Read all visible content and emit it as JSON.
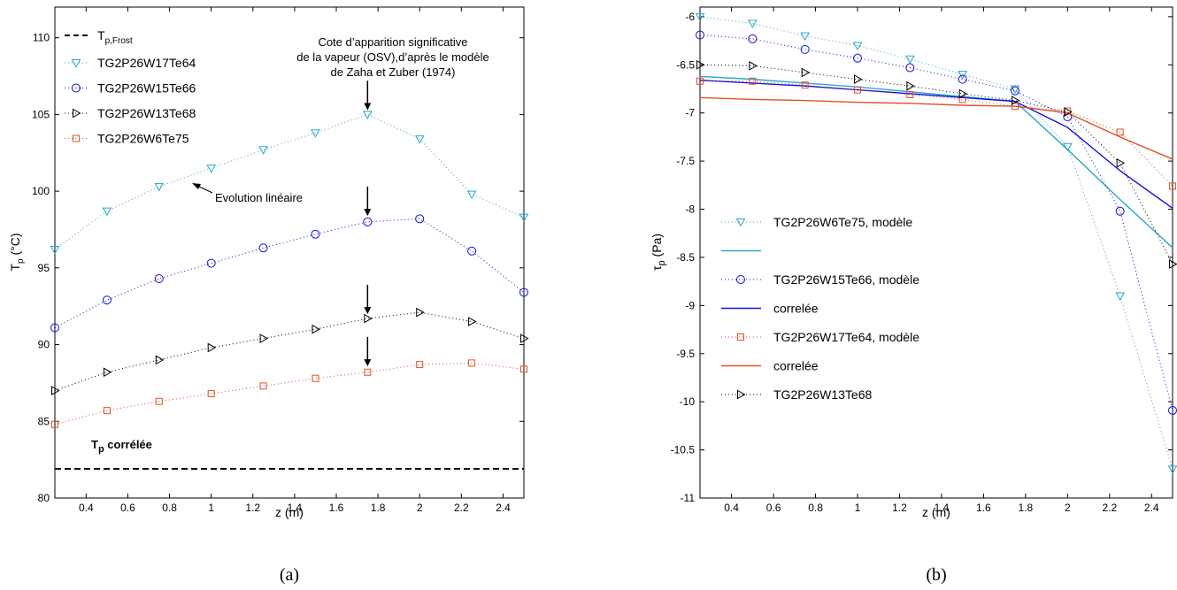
{
  "chart_data": [
    {
      "type": "line",
      "panel_label": "(a)",
      "xlabel": "z (m)",
      "ylabel": "T",
      "ylabel_sub": "p",
      "ylabel_unit": " (°C)",
      "xlim": [
        0.25,
        2.5
      ],
      "ylim": [
        80,
        112
      ],
      "xticks": [
        0.4,
        0.6,
        0.8,
        1,
        1.2,
        1.4,
        1.6,
        1.8,
        2,
        2.2,
        2.4
      ],
      "xticklabels": [
        "0.4",
        "0.6",
        "0.8",
        "1",
        "1.2",
        "1.4",
        "1.6",
        "1.8",
        "2",
        "2.2",
        "2.4"
      ],
      "yticks": [
        80,
        85,
        90,
        95,
        100,
        105,
        110
      ],
      "yticklabels": [
        "80",
        "85",
        "90",
        "95",
        "100",
        "105",
        "110"
      ],
      "grid": false,
      "legend_position": "top-left",
      "reference_line": {
        "y": 81.9,
        "label_main": "T",
        "label_sub": "p,Frost",
        "color": "#000000"
      },
      "x": [
        0.25,
        0.5,
        0.75,
        1.0,
        1.25,
        1.5,
        1.75,
        2.0,
        2.25,
        2.5
      ],
      "series": [
        {
          "name": "TG2P26W17Te64",
          "marker": "triangle-down",
          "color": "#2aa7c6",
          "values": [
            96.2,
            98.7,
            100.3,
            101.5,
            102.7,
            103.8,
            105.0,
            103.4,
            99.8,
            98.3
          ]
        },
        {
          "name": "TG2P26W15Te66",
          "marker": "circle",
          "color": "#1010dd",
          "values": [
            91.1,
            92.9,
            94.3,
            95.3,
            96.3,
            97.2,
            98.0,
            98.2,
            96.1,
            93.4
          ]
        },
        {
          "name": "TG2P26W13Te68",
          "marker": "triangle-right",
          "color": "#000000",
          "values": [
            87.0,
            88.2,
            89.0,
            89.8,
            90.4,
            91.0,
            91.7,
            92.1,
            91.5,
            90.4
          ]
        },
        {
          "name": "TG2P26W6Te75",
          "marker": "square",
          "color": "#e0502a",
          "values": [
            84.8,
            85.7,
            86.3,
            86.8,
            87.3,
            87.8,
            88.2,
            88.7,
            88.8,
            88.4
          ]
        }
      ],
      "annotations": {
        "osv_line1": "Cote d’apparition significative",
        "osv_line2": "de la vapeur (OSV),d’après le modèle",
        "osv_line3": "de Zaha et Zuber (1974)",
        "lin": "Evolution linéaire",
        "corr_main": "T",
        "corr_sub": "p",
        "corr_rest": " corrélée"
      },
      "arrows": [
        {
          "x": 1.75,
          "y_tip": 105.4,
          "y_tail": 107.2
        },
        {
          "x": 1.75,
          "y_tip": 98.5,
          "y_tail": 100.3
        },
        {
          "x": 1.75,
          "y_tip": 92.1,
          "y_tail": 93.9
        },
        {
          "x": 1.75,
          "y_tip": 88.7,
          "y_tail": 90.5
        }
      ]
    },
    {
      "type": "line",
      "panel_label": "(b)",
      "xlabel": "z (m)",
      "ylabel": "τ",
      "ylabel_sub": "p",
      "ylabel_unit": " (Pa)",
      "xlim": [
        0.25,
        2.5
      ],
      "ylim": [
        -11,
        -5.9
      ],
      "xticks": [
        0.4,
        0.6,
        0.8,
        1,
        1.2,
        1.4,
        1.6,
        1.8,
        2,
        2.2,
        2.4
      ],
      "xticklabels": [
        "0.4",
        "0.6",
        "0.8",
        "1",
        "1.2",
        "1.4",
        "1.6",
        "1.8",
        "2",
        "2.2",
        "2.4"
      ],
      "yticks": [
        -11,
        -10.5,
        -10,
        -9.5,
        -9,
        -8.5,
        -8,
        -7.5,
        -7,
        -6.5,
        -6
      ],
      "yticklabels": [
        "-11",
        "-10.5",
        "-10",
        "-9.5",
        "-9",
        "-8.5",
        "-8",
        "-7.5",
        "-7",
        "-6.5",
        "-6"
      ],
      "grid": false,
      "legend_position": "center-left",
      "x": [
        0.25,
        0.5,
        0.75,
        1.0,
        1.25,
        1.5,
        1.75,
        2.0,
        2.25,
        2.5
      ],
      "series": [
        {
          "name": "TG2P26W6Te75, modèle",
          "kind": "markers",
          "marker": "triangle-down",
          "color": "#2aa7c6",
          "values": [
            -6.0,
            -6.07,
            -6.2,
            -6.3,
            -6.44,
            -6.6,
            -6.75,
            -7.35,
            -8.9,
            -10.7
          ]
        },
        {
          "name": "",
          "kind": "line",
          "color": "#2aa7c6",
          "values": [
            -6.62,
            -6.65,
            -6.69,
            -6.73,
            -6.78,
            -6.83,
            -6.88,
            -7.38,
            -7.9,
            -8.4
          ]
        },
        {
          "name": "TG2P26W15Te66, modèle",
          "kind": "markers",
          "marker": "circle",
          "color": "#1010dd",
          "values": [
            -6.19,
            -6.23,
            -6.34,
            -6.43,
            -6.53,
            -6.65,
            -6.77,
            -7.04,
            -8.02,
            -10.09
          ]
        },
        {
          "name": "correlée",
          "kind": "line",
          "color": "#1010dd",
          "values": [
            -6.66,
            -6.69,
            -6.72,
            -6.76,
            -6.8,
            -6.84,
            -6.88,
            -7.15,
            -7.6,
            -7.99
          ]
        },
        {
          "name": "TG2P26W17Te64, modèle",
          "kind": "markers",
          "marker": "square",
          "color": "#e0502a",
          "values": [
            -6.67,
            -6.67,
            -6.71,
            -6.76,
            -6.81,
            -6.86,
            -6.93,
            -6.98,
            -7.2,
            -7.76
          ]
        },
        {
          "name": "correlée",
          "kind": "line",
          "color": "#e0502a",
          "values": [
            -6.84,
            -6.86,
            -6.87,
            -6.89,
            -6.9,
            -6.92,
            -6.93,
            -7.0,
            -7.25,
            -7.48
          ]
        },
        {
          "name": "TG2P26W13Te68",
          "kind": "markers",
          "marker": "triangle-right",
          "color": "#000000",
          "values": [
            -6.5,
            -6.51,
            -6.58,
            -6.65,
            -6.72,
            -6.8,
            -6.87,
            -6.99,
            -7.52,
            -8.57
          ]
        }
      ]
    }
  ]
}
